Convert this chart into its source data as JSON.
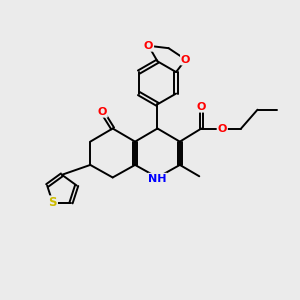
{
  "background_color": "#ebebeb",
  "bond_color": "#000000",
  "atom_colors": {
    "O": "#ff0000",
    "N": "#0000ff",
    "S": "#ccbb00",
    "C": "#000000"
  },
  "figsize": [
    3.0,
    3.0
  ],
  "dpi": 100
}
